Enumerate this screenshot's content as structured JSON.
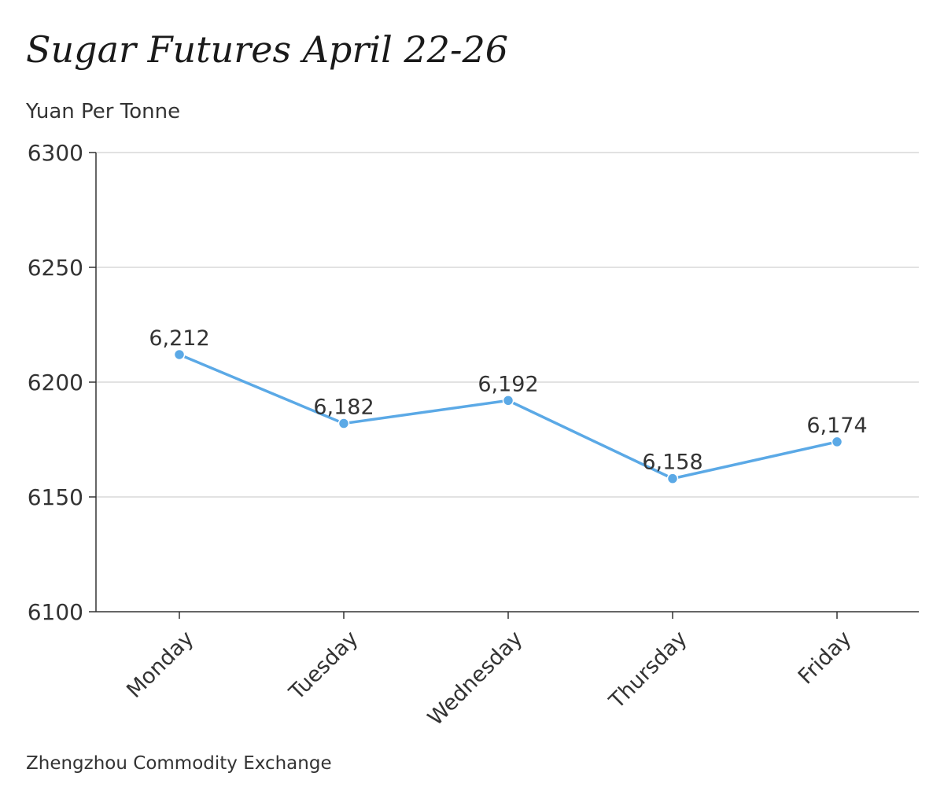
{
  "chart_data": {
    "type": "line",
    "title": "Sugar Futures April 22-26",
    "ylabel": "Yuan Per Tonne",
    "xlabel": "",
    "source": "Zhengzhou Commodity Exchange",
    "categories": [
      "Monday",
      "Tuesday",
      "Wednesday",
      "Thursday",
      "Friday"
    ],
    "values": [
      6212,
      6182,
      6192,
      6158,
      6174
    ],
    "data_labels": [
      "6,212",
      "6,182",
      "6,192",
      "6,158",
      "6,174"
    ],
    "ylim": [
      6100,
      6300
    ],
    "yticks": [
      6100,
      6150,
      6200,
      6250,
      6300
    ],
    "ytick_labels": [
      "6100",
      "6150",
      "6200",
      "6250",
      "6300"
    ],
    "grid": true,
    "line_color": "#5ba9e6",
    "grid_color": "#d9d9d9",
    "axis_color": "#333333"
  }
}
